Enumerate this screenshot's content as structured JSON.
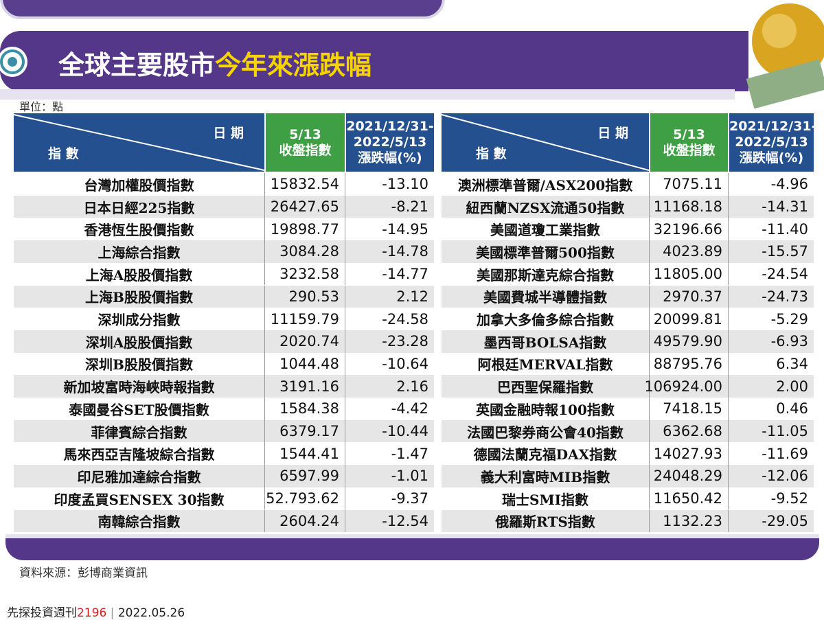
{
  "title": {
    "main": "全球主要股市",
    "highlight": "今年來漲跌幅"
  },
  "unit": "單位：點",
  "tables": [
    {
      "header": {
        "date": "日 期",
        "index": "指 數",
        "close": [
          "5/13",
          "收盤指數"
        ],
        "change": [
          "2021/12/31-",
          "2022/5/13",
          "漲跌幅(%)"
        ]
      },
      "rows": [
        [
          "台灣加權股價指數",
          "15832.54",
          "-13.10"
        ],
        [
          "日本日經225指數",
          "26427.65",
          "-8.21"
        ],
        [
          "香港恆生股價指數",
          "19898.77",
          "-14.95"
        ],
        [
          "上海綜合指數",
          "3084.28",
          "-14.78"
        ],
        [
          "上海A股股價指數",
          "3232.58",
          "-14.77"
        ],
        [
          "上海B股股價指數",
          "290.53",
          "2.12"
        ],
        [
          "深圳成分指數",
          "11159.79",
          "-24.58"
        ],
        [
          "深圳A股股價指數",
          "2020.74",
          "-23.28"
        ],
        [
          "深圳B股股價指數",
          "1044.48",
          "-10.64"
        ],
        [
          "新加坡富時海峽時報指數",
          "3191.16",
          "2.16"
        ],
        [
          "泰國曼谷SET股價指數",
          "1584.38",
          "-4.42"
        ],
        [
          "菲律賓綜合指數",
          "6379.17",
          "-10.44"
        ],
        [
          "馬來西亞吉隆坡綜合指數",
          "1544.41",
          "-1.47"
        ],
        [
          "印尼雅加達綜合指數",
          "6597.99",
          "-1.01"
        ],
        [
          "印度孟買SENSEX 30指數",
          "52.793.62",
          "-9.37"
        ],
        [
          "南韓綜合指數",
          "2604.24",
          "-12.54"
        ]
      ]
    },
    {
      "header": {
        "date": "日 期",
        "index": "指 數",
        "close": [
          "5/13",
          "收盤指數"
        ],
        "change": [
          "2021/12/31-",
          "2022/5/13",
          "漲跌幅(%)"
        ]
      },
      "rows": [
        [
          "澳洲標準普爾/ASX200指數",
          "7075.11",
          "-4.96"
        ],
        [
          "紐西蘭NZSX流通50指數",
          "11168.18",
          "-14.31"
        ],
        [
          "美國道瓊工業指數",
          "32196.66",
          "-11.40"
        ],
        [
          "美國標準普爾500指數",
          "4023.89",
          "-15.57"
        ],
        [
          "美國那斯達克綜合指數",
          "11805.00",
          "-24.54"
        ],
        [
          "美國費城半導體指數",
          "2970.37",
          "-24.73"
        ],
        [
          "加拿大多倫多綜合指數",
          "20099.81",
          "-5.29"
        ],
        [
          "墨西哥BOLSA指數",
          "49579.90",
          "-6.93"
        ],
        [
          "阿根廷MERVAL指數",
          "88795.76",
          "6.34"
        ],
        [
          "巴西聖保羅指數",
          "106924.00",
          "2.00"
        ],
        [
          "英國金融時報100指數",
          "7418.15",
          "0.46"
        ],
        [
          "法國巴黎券商公會40指數",
          "6362.68",
          "-11.05"
        ],
        [
          "德國法蘭克福DAX指數",
          "14027.93",
          "-11.69"
        ],
        [
          "義大利富時MIB指數",
          "24048.29",
          "-12.06"
        ],
        [
          "瑞士SMI指數",
          "11650.42",
          "-9.52"
        ],
        [
          "俄羅斯RTS指數",
          "1132.23",
          "-29.05"
        ]
      ]
    }
  ],
  "source": "資料來源：彭博商業資訊",
  "footer": {
    "publication": "先探投資週刊",
    "issue": "2196",
    "date": "2022.05.26"
  }
}
